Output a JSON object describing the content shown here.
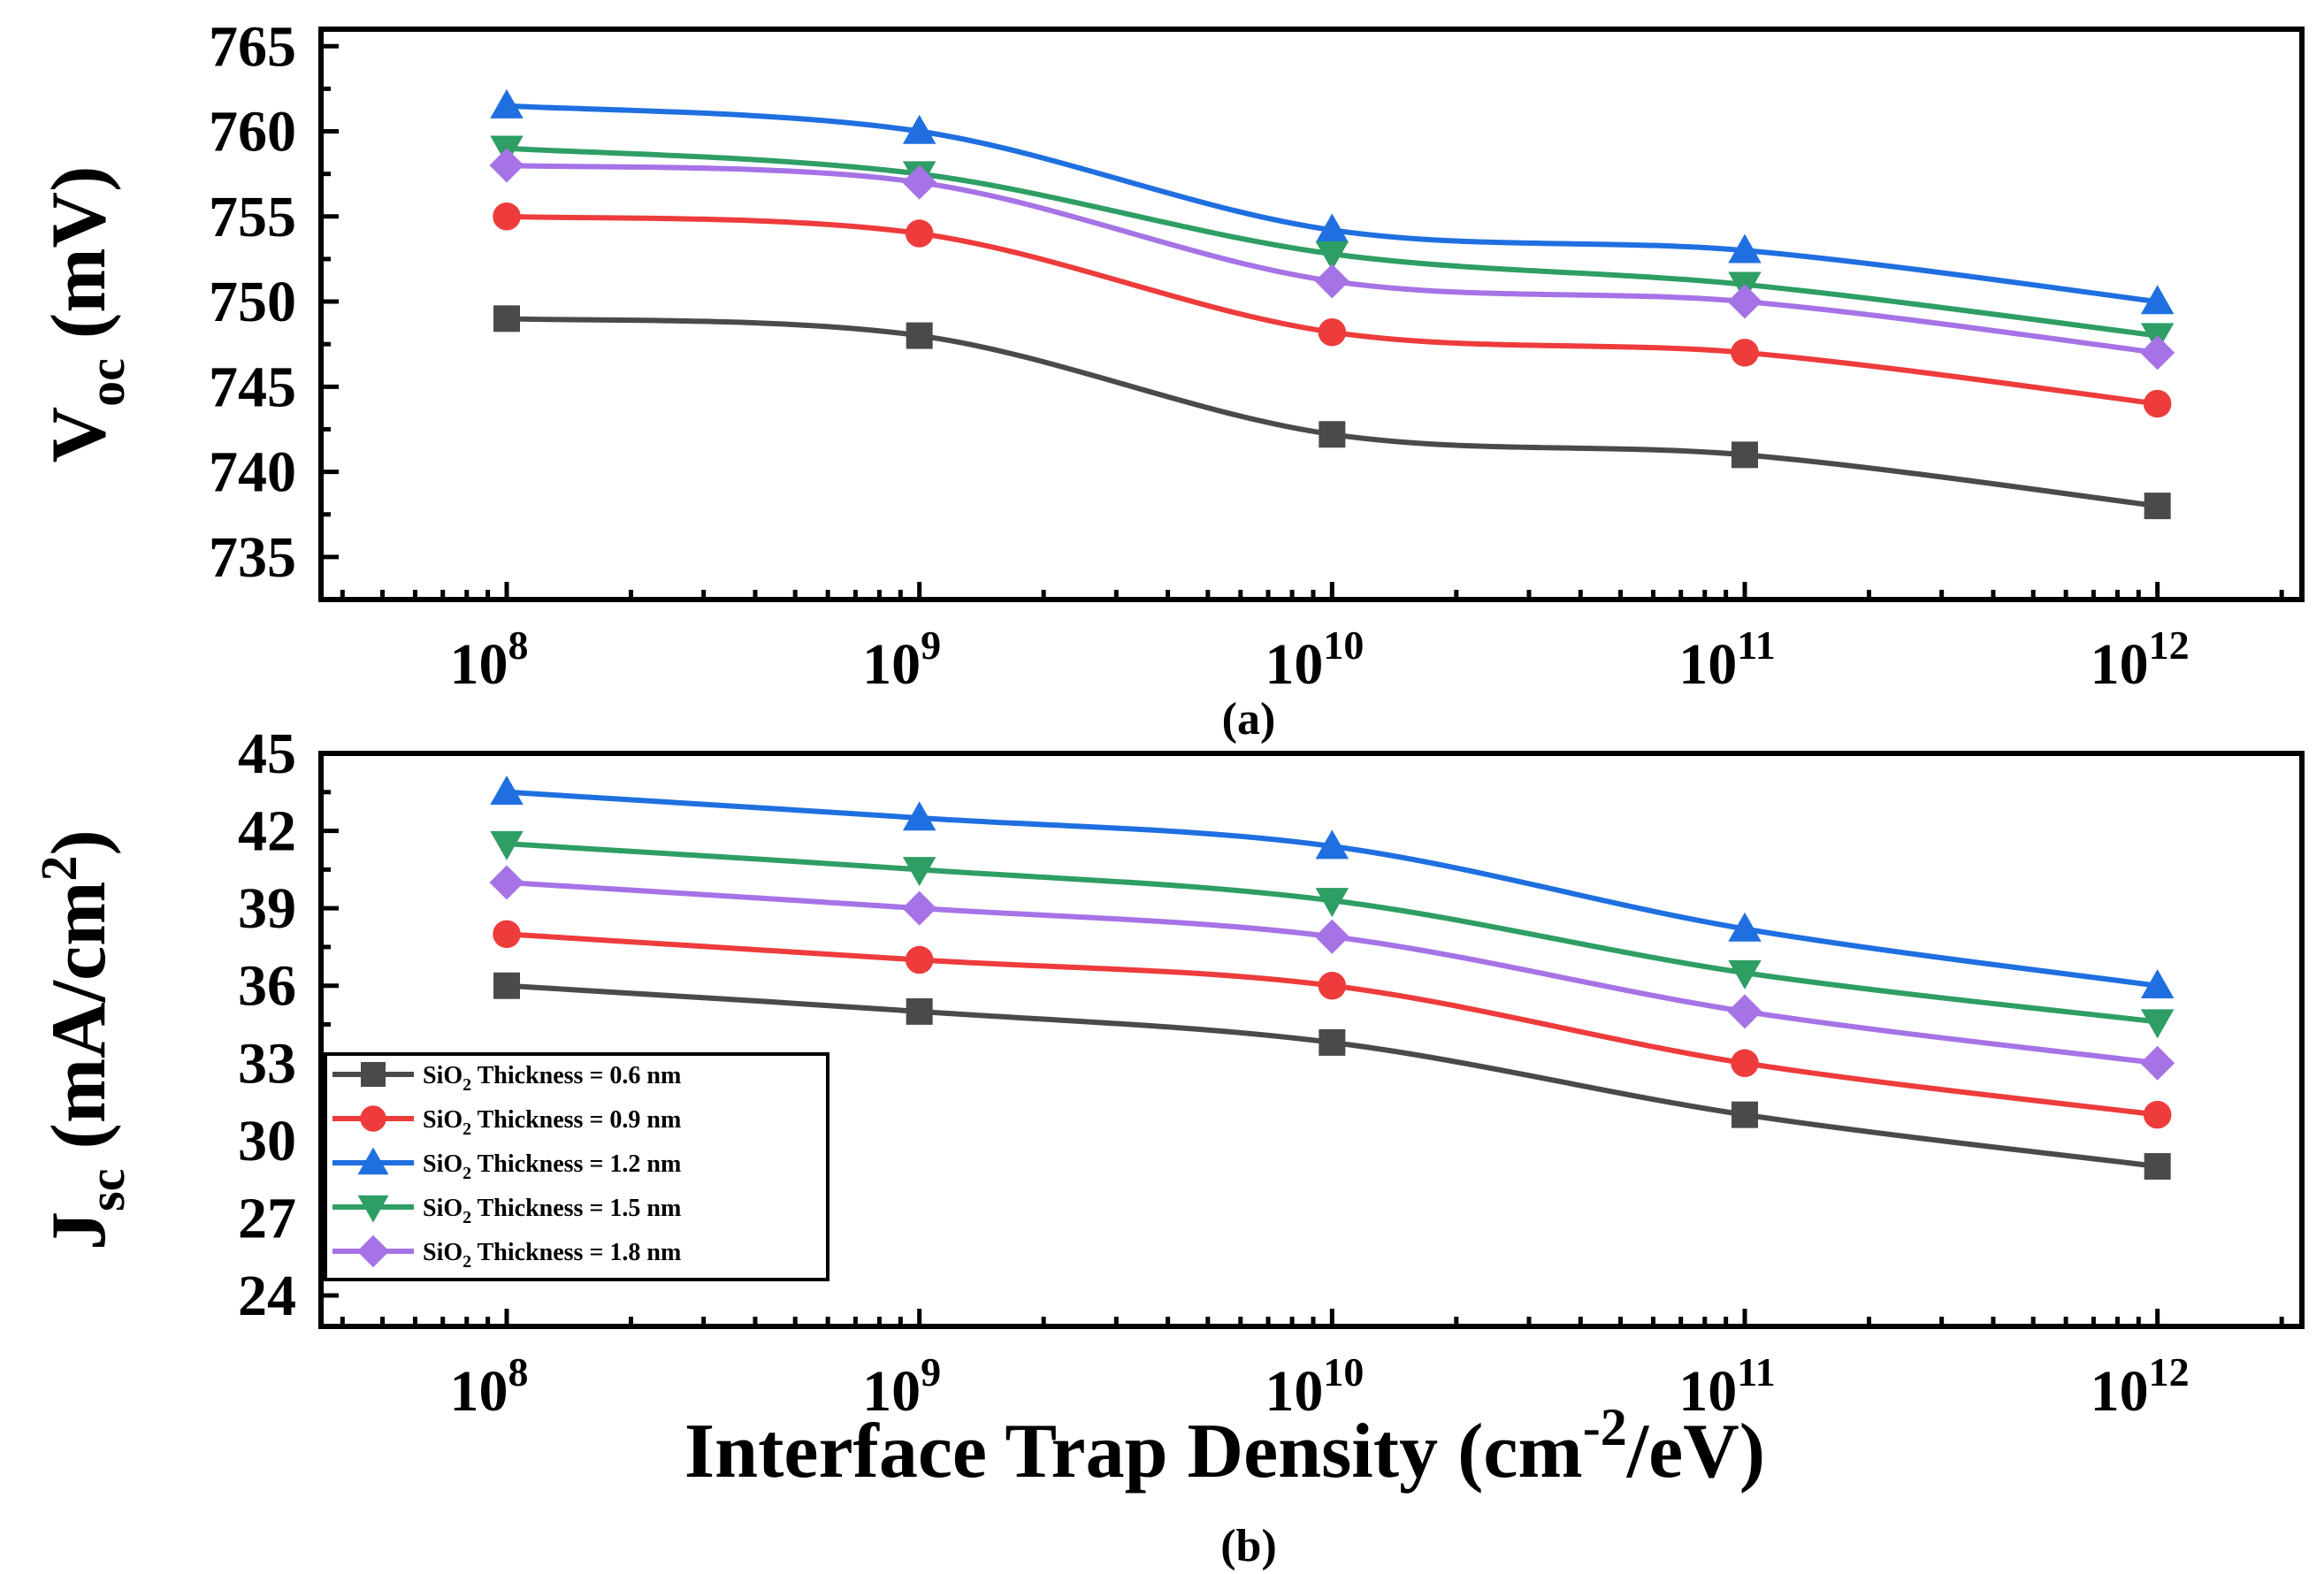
{
  "chart_data": [
    {
      "type": "line",
      "panel_caption": "(a)",
      "title": "",
      "xlabel": "",
      "ylabel": {
        "main": "V",
        "sub": "oc",
        "unit": " (mV)"
      },
      "x": [
        100000000,
        1000000000,
        10000000000,
        100000000000,
        1000000000000
      ],
      "x_ticks": [
        {
          "base": "10",
          "exp": "8"
        },
        {
          "base": "10",
          "exp": "9"
        },
        {
          "base": "10",
          "exp": "10"
        },
        {
          "base": "10",
          "exp": "11"
        },
        {
          "base": "10",
          "exp": "12"
        }
      ],
      "y_ticks": [
        "735",
        "740",
        "745",
        "750",
        "755",
        "760",
        "765"
      ],
      "ylim": [
        732.5,
        766
      ],
      "xscale": "log",
      "series": [
        {
          "name": "SiO2 Thickness = 0.6 nm",
          "values": [
            749,
            748,
            742.2,
            741,
            738
          ]
        },
        {
          "name": "SiO2 Thickness = 0.9 nm",
          "values": [
            755,
            754,
            748.2,
            747,
            744
          ]
        },
        {
          "name": "SiO2 Thickness = 1.2 nm",
          "values": [
            761.5,
            760,
            754.2,
            753,
            750
          ]
        },
        {
          "name": "SiO2 Thickness = 1.5 nm",
          "values": [
            759,
            757.5,
            752.8,
            751,
            748
          ]
        },
        {
          "name": "SiO2 Thickness = 1.8 nm",
          "values": [
            758,
            757,
            751.2,
            750,
            747
          ]
        }
      ]
    },
    {
      "type": "line",
      "panel_caption": "(b)",
      "title": "",
      "xlabel": {
        "main": "Interface Trap Density (cm",
        "sup": "-2",
        "rest": "/eV)"
      },
      "ylabel": {
        "main": "J",
        "sub": "sc",
        "unit": " (mA/cm",
        "sup": "2",
        "close": ")"
      },
      "x": [
        100000000,
        1000000000,
        10000000000,
        100000000000,
        1000000000000
      ],
      "x_ticks": [
        {
          "base": "10",
          "exp": "8"
        },
        {
          "base": "10",
          "exp": "9"
        },
        {
          "base": "10",
          "exp": "10"
        },
        {
          "base": "10",
          "exp": "11"
        },
        {
          "base": "10",
          "exp": "12"
        }
      ],
      "y_ticks": [
        "24",
        "27",
        "30",
        "33",
        "36",
        "39",
        "42",
        "45"
      ],
      "ylim": [
        22.8,
        45
      ],
      "xscale": "log",
      "series": [
        {
          "name": "SiO2 Thickness = 0.6 nm",
          "values": [
            36,
            35,
            33.8,
            31,
            29
          ]
        },
        {
          "name": "SiO2 Thickness = 0.9 nm",
          "values": [
            38,
            37,
            36,
            33,
            31
          ]
        },
        {
          "name": "SiO2 Thickness = 1.2 nm",
          "values": [
            43.5,
            42.5,
            41.4,
            38.2,
            36
          ]
        },
        {
          "name": "SiO2 Thickness = 1.5 nm",
          "values": [
            41.5,
            40.5,
            39.3,
            36.5,
            34.6
          ]
        },
        {
          "name": "SiO2 Thickness = 1.8 nm",
          "values": [
            40,
            39,
            37.9,
            35,
            33
          ]
        }
      ]
    }
  ],
  "legend": {
    "placement": "lower-left of panel (b)",
    "entries": [
      {
        "prefix": "SiO",
        "sub": "2",
        "suffix": " Thickness = 0.6 nm",
        "color": "#4a4a4a",
        "marker": "square"
      },
      {
        "prefix": "SiO",
        "sub": "2",
        "suffix": " Thickness = 0.9 nm",
        "color": "#ee3b3b",
        "marker": "circle"
      },
      {
        "prefix": "SiO",
        "sub": "2",
        "suffix": " Thickness = 1.2 nm",
        "color": "#1f6fe0",
        "marker": "triangle-up"
      },
      {
        "prefix": "SiO",
        "sub": "2",
        "suffix": " Thickness = 1.5 nm",
        "color": "#2e9e64",
        "marker": "triangle-down"
      },
      {
        "prefix": "SiO",
        "sub": "2",
        "suffix": " Thickness = 1.8 nm",
        "color": "#a673e6",
        "marker": "diamond"
      }
    ]
  },
  "colors": [
    "#4a4a4a",
    "#ee3b3b",
    "#1f6fe0",
    "#2e9e64",
    "#a673e6"
  ],
  "markers": [
    "square",
    "circle",
    "triangle-up",
    "triangle-down",
    "diamond"
  ]
}
